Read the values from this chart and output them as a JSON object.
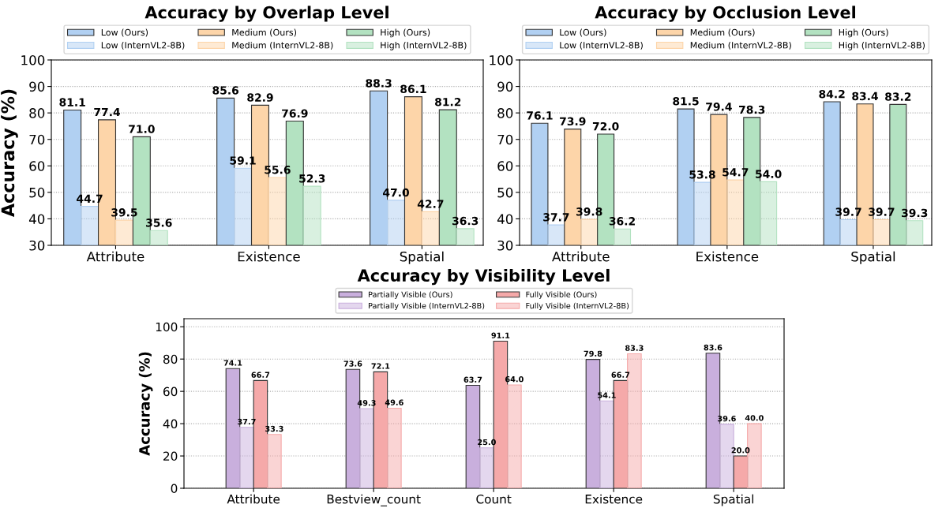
{
  "chart_data": [
    {
      "type": "bar",
      "title": "Accuracy by Overlap Level",
      "ylabel": "Accuracy (%)",
      "categories": [
        "Attribute",
        "Existence",
        "Spatial"
      ],
      "series": [
        {
          "name": "Low (Ours)",
          "color": "#b1d0f2",
          "values": [
            81.1,
            85.6,
            88.3
          ],
          "value_labels": [
            "81.1",
            "85.6",
            "88.3"
          ]
        },
        {
          "name": "Low (InternVL2-8B)",
          "color": "#b1d0f2",
          "values": [
            44.7,
            59.1,
            47.0
          ],
          "value_labels": [
            "44.7",
            "59.1",
            "47.0"
          ]
        },
        {
          "name": "Medium (Ours)",
          "color": "#fdd5a9",
          "values": [
            77.4,
            82.9,
            86.1
          ],
          "value_labels": [
            "77.4",
            "82.9",
            "86.1"
          ]
        },
        {
          "name": "Medium (InternVL2-8B)",
          "color": "#fdd5a9",
          "values": [
            39.5,
            55.6,
            42.7
          ],
          "value_labels": [
            "39.5",
            "55.6",
            "42.7"
          ]
        },
        {
          "name": "High (Ours)",
          "color": "#b3e2c1",
          "values": [
            71.0,
            76.9,
            81.2
          ],
          "value_labels": [
            "71.0",
            "76.9",
            "81.2"
          ]
        },
        {
          "name": "High (InternVL2-8B)",
          "color": "#b3e2c1",
          "values": [
            35.6,
            52.3,
            36.3
          ],
          "value_labels": [
            "35.6",
            "52.3",
            "36.3"
          ]
        }
      ],
      "ylim": [
        30,
        100
      ],
      "yticks": [
        30,
        40,
        50,
        60,
        70,
        80,
        90,
        100
      ],
      "grid": "y",
      "legend": "top"
    },
    {
      "type": "bar",
      "title": "Accuracy by Occlusion Level",
      "categories": [
        "Attribute",
        "Existence",
        "Spatial"
      ],
      "series": [
        {
          "name": "Low (Ours)",
          "color": "#b1d0f2",
          "values": [
            76.1,
            81.5,
            84.2
          ],
          "value_labels": [
            "76.1",
            "81.5",
            "84.2"
          ]
        },
        {
          "name": "Low (InternVL2-8B)",
          "color": "#b1d0f2",
          "values": [
            37.7,
            53.8,
            39.7
          ],
          "value_labels": [
            "37.7",
            "53.8",
            "39.7"
          ]
        },
        {
          "name": "Medium (Ours)",
          "color": "#fdd5a9",
          "values": [
            73.9,
            79.4,
            83.4
          ],
          "value_labels": [
            "73.9",
            "79.4",
            "83.4"
          ]
        },
        {
          "name": "Medium (InternVL2-8B)",
          "color": "#fdd5a9",
          "values": [
            39.8,
            54.7,
            39.7
          ],
          "value_labels": [
            "39.8",
            "54.7",
            "39.7"
          ]
        },
        {
          "name": "High (Ours)",
          "color": "#b3e2c1",
          "values": [
            72.0,
            78.3,
            83.2
          ],
          "value_labels": [
            "72.0",
            "78.3",
            "83.2"
          ]
        },
        {
          "name": "High (InternVL2-8B)",
          "color": "#b3e2c1",
          "values": [
            36.2,
            54.0,
            39.3
          ],
          "value_labels": [
            "36.2",
            "54.0",
            "39.3"
          ]
        }
      ],
      "ylim": [
        30,
        100
      ],
      "yticks": [
        30,
        40,
        50,
        60,
        70,
        80,
        90,
        100
      ],
      "grid": "y",
      "legend": "top"
    },
    {
      "type": "bar",
      "title": "Accuracy by Visibility Level",
      "ylabel": "Accuracy (%)",
      "categories": [
        "Attribute",
        "Bestview_count",
        "Count",
        "Existence",
        "Spatial"
      ],
      "series": [
        {
          "name": "Partially Visible (Ours)",
          "color": "#c9afdd",
          "values": [
            74.1,
            73.6,
            63.7,
            79.8,
            83.6
          ],
          "value_labels": [
            "74.1",
            "73.6",
            "63.7",
            "79.8",
            "83.6"
          ]
        },
        {
          "name": "Partially Visible (InternVL2-8B)",
          "color": "#c9afdd",
          "values": [
            37.7,
            49.3,
            25.0,
            54.1,
            39.6
          ],
          "value_labels": [
            "37.7",
            "49.3",
            "25.0",
            "54.1",
            "39.6"
          ]
        },
        {
          "name": "Fully Visible (Ours)",
          "color": "#f5a9a9",
          "values": [
            66.7,
            72.1,
            91.1,
            66.7,
            20.0
          ],
          "value_labels": [
            "66.7",
            "72.1",
            "91.1",
            "66.7",
            "20.0"
          ]
        },
        {
          "name": "Fully Visible (InternVL2-8B)",
          "color": "#f5a9a9",
          "values": [
            33.3,
            49.6,
            64.0,
            83.3,
            40.0
          ],
          "value_labels": [
            "33.3",
            "49.6",
            "64.0",
            "83.3",
            "40.0"
          ]
        }
      ],
      "ylim": [
        0,
        105
      ],
      "yticks": [
        0,
        20,
        40,
        60,
        80,
        100
      ],
      "grid": "y",
      "legend": "top"
    }
  ]
}
